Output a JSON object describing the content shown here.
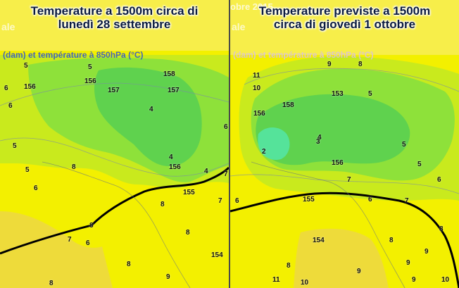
{
  "colors": {
    "yellow": "#f3f000",
    "light_yellow": "#f7ee4a",
    "yellow_green": "#c9ea1d",
    "green": "#8ee13a",
    "dark_green": "#5fd24e",
    "cyan_green": "#55e39a",
    "orange_yellow": "#eedb3a",
    "geopotential_line": "#000000"
  },
  "left_panel": {
    "title_line1": "Temperature a 1500m circa di",
    "title_line2": "lunedì 28 settembre",
    "subtitle": "(dam) et température à 850hPa (°C)",
    "watermark_fragment": "ale",
    "labels": [
      "5",
      "6",
      "6",
      "5",
      "156",
      "156",
      "157",
      "158",
      "157",
      "4",
      "4",
      "5",
      "6",
      "5",
      "156",
      "4",
      "8",
      "6",
      "155",
      "7",
      "8",
      "8",
      "7",
      "6",
      "7",
      "8",
      "8",
      "9",
      "154",
      "8"
    ]
  },
  "right_panel": {
    "title_line1": "Temperature previste a 1500m",
    "title_line2": "circa di giovedì 1 ottobre",
    "subtitle": "(dam) et température à 850hPa (°C)",
    "watermark_year": "obre 2015",
    "watermark_fragment": "ale",
    "labels": [
      "11",
      "9",
      "8",
      "10",
      "153",
      "5",
      "156",
      "158",
      "4",
      "5",
      "2",
      "3",
      "156",
      "5",
      "6",
      "7",
      "6",
      "155",
      "6",
      "7",
      "154",
      "8",
      "9",
      "8",
      "9",
      "9",
      "8",
      "10",
      "9",
      "10",
      "11"
    ]
  }
}
